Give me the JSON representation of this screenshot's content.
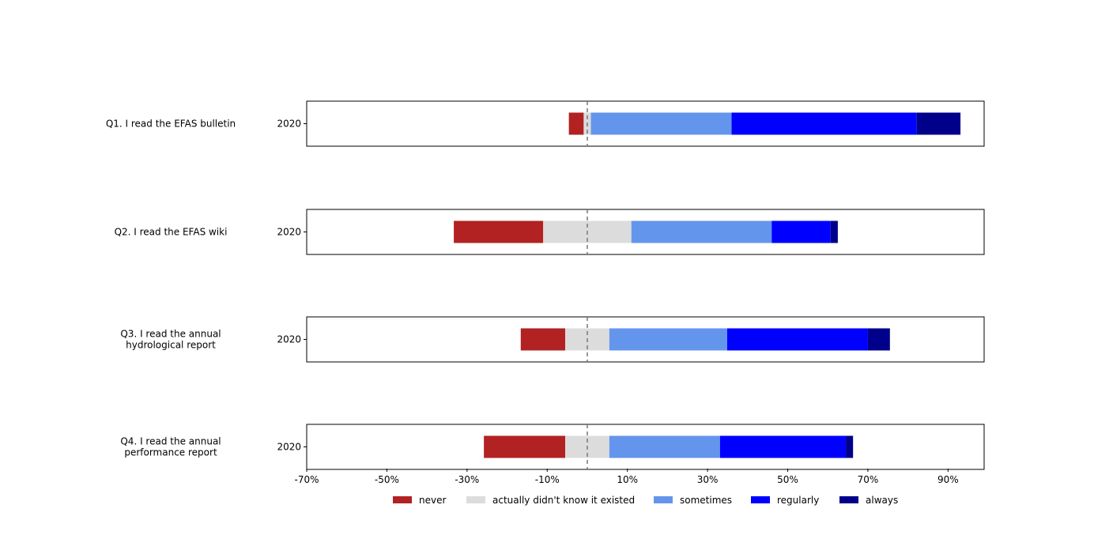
{
  "chart_data": {
    "type": "bar",
    "orientation": "horizontal",
    "stacked": "diverging",
    "center_line": 0,
    "xlim": [
      -70,
      99
    ],
    "x_ticks": [
      -70,
      -50,
      -30,
      -10,
      10,
      30,
      50,
      70,
      90
    ],
    "x_tick_labels": [
      "-70%",
      "-50%",
      "-30%",
      "-10%",
      "10%",
      "30%",
      "50%",
      "70%",
      "90%"
    ],
    "legend_position": "bottom",
    "grid": false,
    "categories": [
      "never",
      "actually didn't know it existed",
      "sometimes",
      "regularly",
      "always"
    ],
    "colors": [
      "#b22222",
      "#dcdcdc",
      "#6495ed",
      "#0000ff",
      "#00008b"
    ],
    "questions": [
      {
        "label": [
          "Q1. I read the EFAS bulletin"
        ],
        "year": "2020",
        "values": [
          3.7,
          1.8,
          35.1,
          46.2,
          10.9
        ]
      },
      {
        "label": [
          "Q2. I read the EFAS wiki"
        ],
        "year": "2020",
        "values": [
          22.3,
          22.0,
          35.0,
          14.7,
          1.8
        ]
      },
      {
        "label": [
          "Q3. I read the annual",
          "hydrological report"
        ],
        "year": "2020",
        "values": [
          11.1,
          11.0,
          29.4,
          35.1,
          5.5
        ]
      },
      {
        "label": [
          "Q4. I read the annual",
          "performance report"
        ],
        "year": "2020",
        "values": [
          20.3,
          11.0,
          27.6,
          31.4,
          1.8
        ]
      }
    ]
  }
}
